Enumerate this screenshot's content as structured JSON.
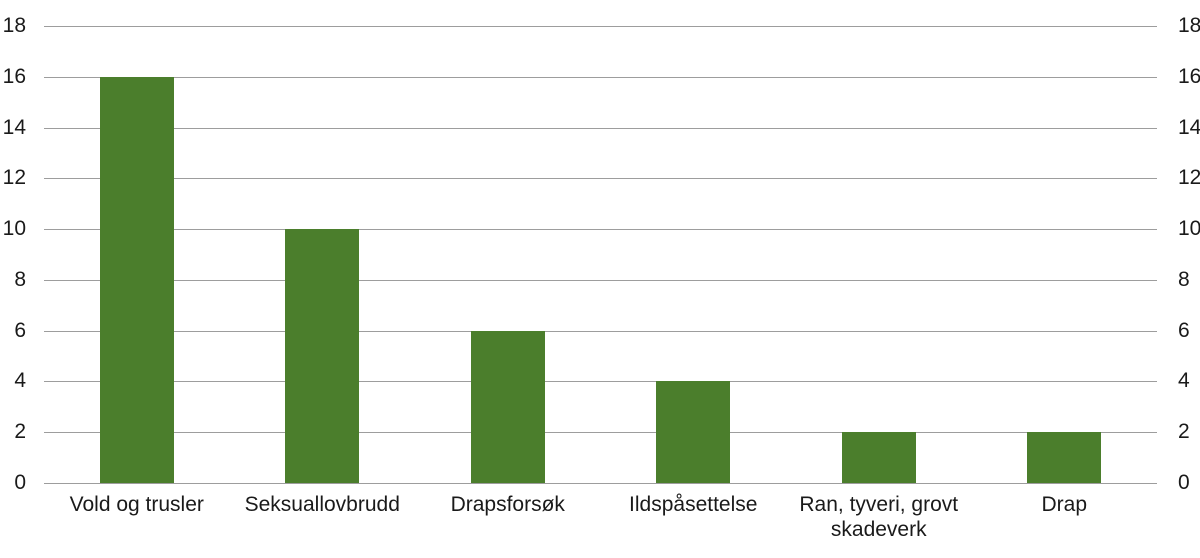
{
  "chart_data": {
    "type": "bar",
    "title": "",
    "xlabel": "",
    "ylabel": "",
    "categories": [
      "Vold og trusler",
      "Seksuallovbrudd",
      "Drapsforsøk",
      "Ildspåsettelse",
      "Ran, tyveri, grovt skadeverk",
      "Drap"
    ],
    "values": [
      16,
      10,
      6,
      4,
      2,
      2
    ],
    "ylim": [
      0,
      18
    ],
    "yticks": [
      0,
      2,
      4,
      6,
      8,
      10,
      12,
      14,
      16,
      18
    ],
    "y_axis_sides": [
      "left",
      "right"
    ],
    "grid": true,
    "legend_position": "none",
    "colors": {
      "bar": "#4b7e2c",
      "gridline": "#9d9d9d",
      "text": "#1a1a1a",
      "background": "#ffffff"
    }
  }
}
